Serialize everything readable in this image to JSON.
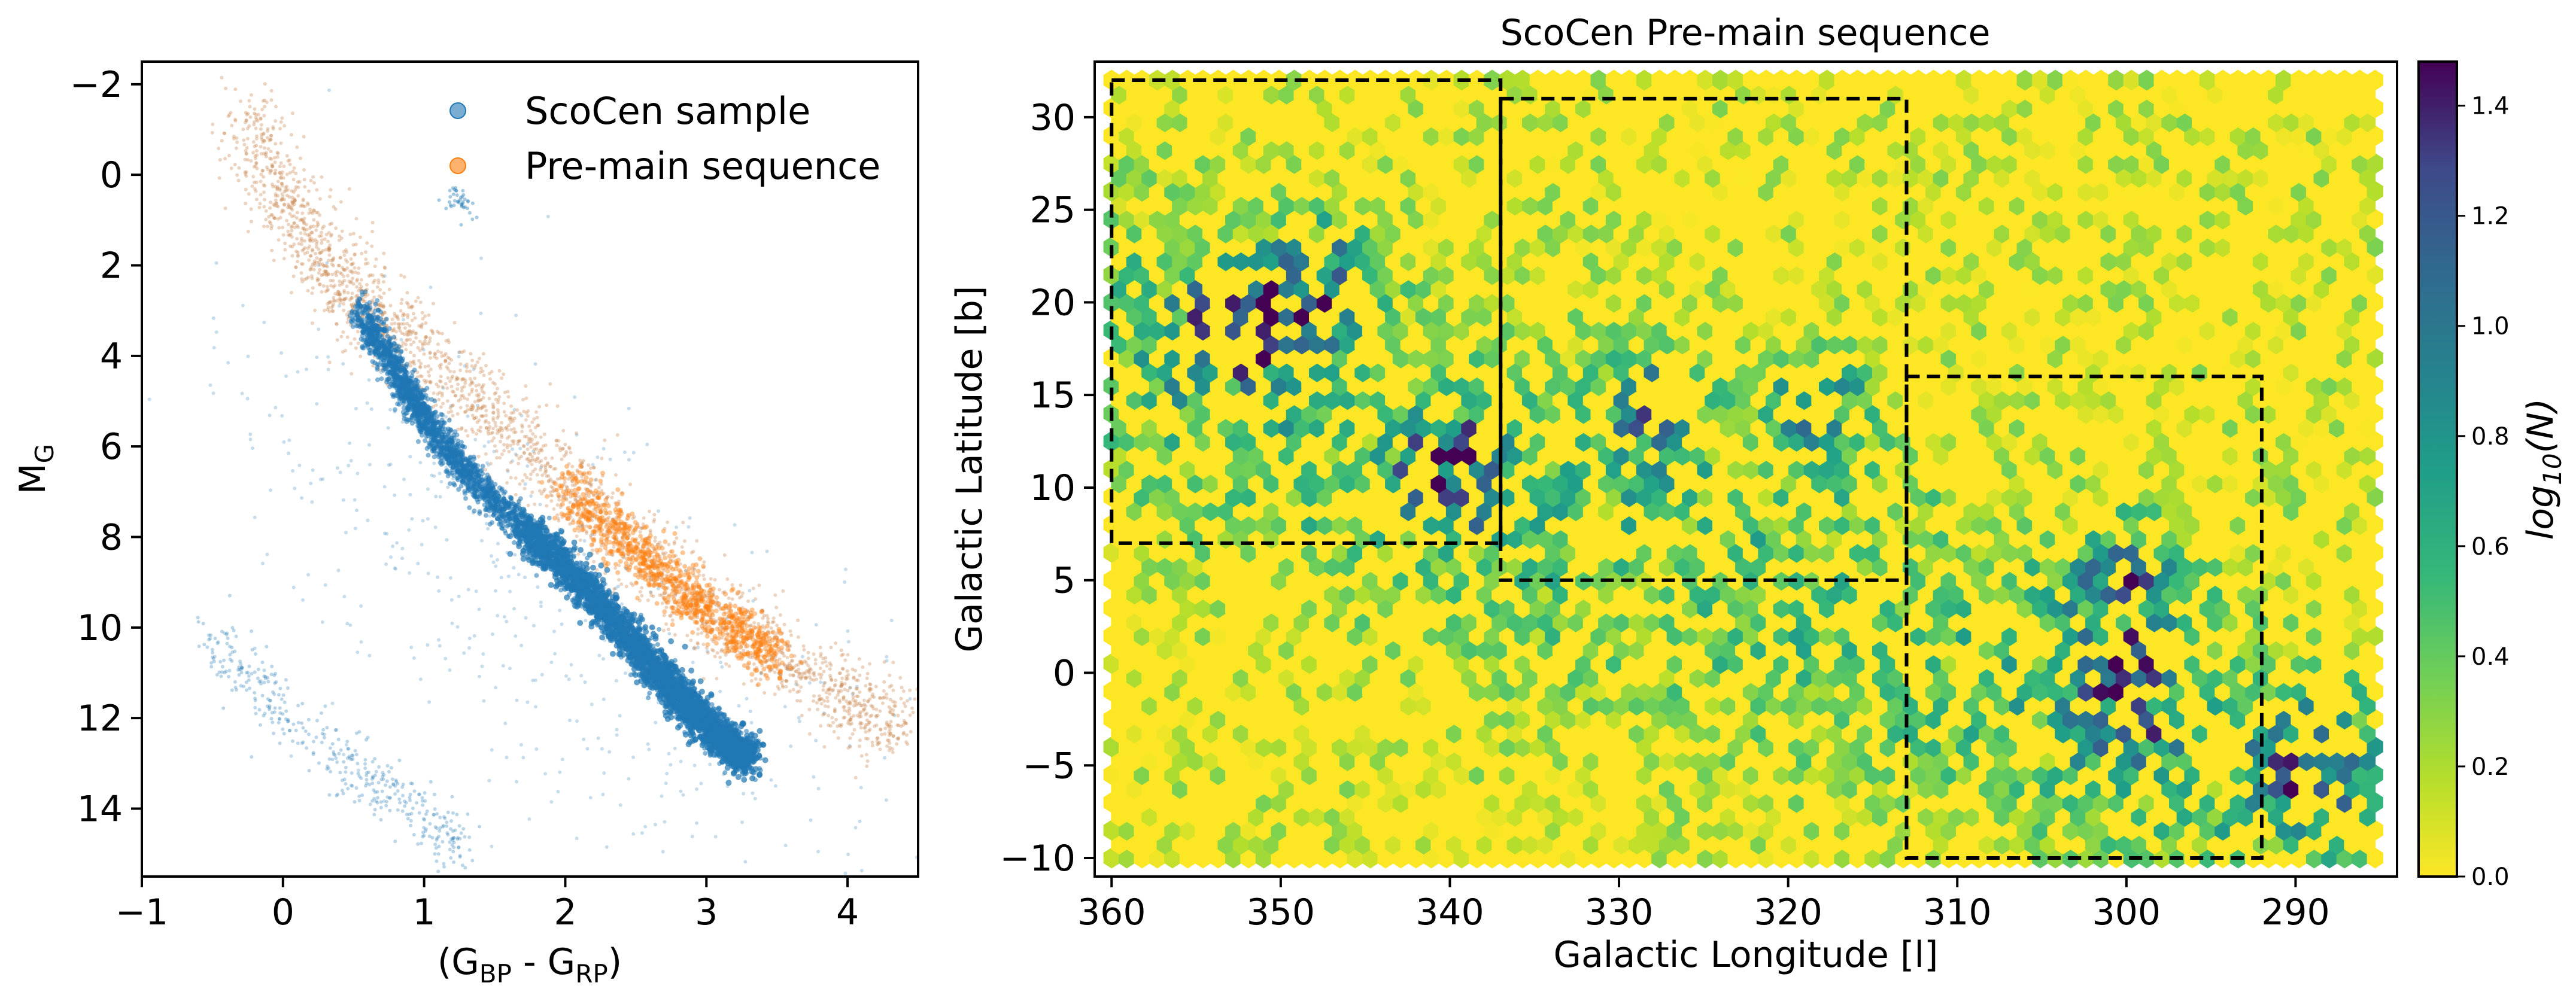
{
  "chart_data": [
    {
      "type": "scatter",
      "title": "",
      "xlabel": {
        "main": "(G",
        "sub1": "BP",
        "mid": " - G",
        "sub2": "RP",
        "end": ")"
      },
      "ylabel": {
        "main": "M",
        "sub": "G"
      },
      "xlim": [
        -1,
        4.5
      ],
      "ylim": [
        15.5,
        -2.5
      ],
      "y_inverted": true,
      "xticks": [
        -1,
        0,
        1,
        2,
        3,
        4
      ],
      "yticks": [
        -2,
        0,
        2,
        4,
        6,
        8,
        10,
        12,
        14
      ],
      "grid": false,
      "legend": {
        "placement": "top-right",
        "entries": [
          {
            "label": "ScoCen sample",
            "color": "#1f77b4"
          },
          {
            "label": "Pre-main sequence",
            "color": "#ff7f0e"
          }
        ]
      },
      "series": [
        {
          "name": "ScoCen sample",
          "color": "#1f77b4",
          "main_sequence_ridge": [
            [
              0.55,
              3.0
            ],
            [
              0.8,
              4.3
            ],
            [
              1.0,
              5.4
            ],
            [
              1.3,
              6.6
            ],
            [
              1.7,
              7.8
            ],
            [
              2.1,
              9.0
            ],
            [
              2.5,
              10.4
            ],
            [
              2.8,
              11.5
            ],
            [
              3.1,
              12.4
            ],
            [
              3.3,
              12.9
            ]
          ],
          "white_dwarf_sequence": [
            [
              -0.5,
              10.3
            ],
            [
              -0.2,
              11.3
            ],
            [
              0.2,
              12.4
            ],
            [
              0.6,
              13.4
            ],
            [
              1.0,
              14.2
            ],
            [
              1.3,
              14.8
            ]
          ],
          "giant_clump": [
            [
              1.2,
              0.3
            ],
            [
              1.25,
              0.6
            ],
            [
              1.3,
              0.8
            ]
          ]
        },
        {
          "name": "Pre-main sequence",
          "color": "#ff7f0e",
          "ridge": [
            [
              -0.3,
              -1.5
            ],
            [
              0.0,
              0.5
            ],
            [
              0.3,
              2.0
            ],
            [
              0.6,
              3.0
            ],
            [
              1.0,
              4.0
            ],
            [
              1.5,
              5.4
            ],
            [
              2.0,
              6.9
            ],
            [
              2.5,
              8.3
            ],
            [
              3.0,
              9.6
            ],
            [
              3.5,
              10.7
            ],
            [
              4.0,
              11.6
            ],
            [
              4.4,
              12.2
            ]
          ]
        }
      ]
    },
    {
      "type": "heatmap",
      "title": "ScoCen Pre-main sequence",
      "xlabel": "Galactic Longitude [l]",
      "ylabel": "Galactic Latitude [b]",
      "xlim": [
        361,
        284
      ],
      "ylim": [
        -11,
        33
      ],
      "x_inverted": true,
      "xticks": [
        360,
        350,
        340,
        330,
        320,
        310,
        300,
        290
      ],
      "yticks": [
        -10,
        -5,
        0,
        5,
        10,
        15,
        20,
        25,
        30
      ],
      "grid": false,
      "colormap": "viridis_r",
      "colorbar": {
        "label": {
          "main": "log",
          "sub": "10",
          "end": "(N)"
        },
        "range": [
          0.0,
          1.48
        ],
        "ticks": [
          0.0,
          0.2,
          0.4,
          0.6,
          0.8,
          1.0,
          1.2,
          1.4
        ],
        "tick_labels": [
          "0.0",
          "0.2",
          "0.4",
          "0.6",
          "0.8",
          "1.0",
          "1.2",
          "1.4"
        ]
      },
      "density_clumps": [
        {
          "l": 352.5,
          "b": 18.5,
          "peak": 1.4
        },
        {
          "l": 348,
          "b": 21,
          "peak": 0.95
        },
        {
          "l": 340,
          "b": 11,
          "peak": 1.0
        },
        {
          "l": 328,
          "b": 14,
          "peak": 0.8
        },
        {
          "l": 318,
          "b": 14,
          "peak": 0.7
        },
        {
          "l": 300,
          "b": 5,
          "peak": 0.85
        },
        {
          "l": 300,
          "b": -1.5,
          "peak": 1.05
        },
        {
          "l": 289,
          "b": -5,
          "peak": 1.0
        }
      ],
      "regions": [
        {
          "l_min": 337,
          "l_max": 360,
          "b_min": 7,
          "b_max": 32
        },
        {
          "l_min": 313,
          "l_max": 337,
          "b_min": 5,
          "b_max": 31
        },
        {
          "l_min": 292,
          "l_max": 313,
          "b_min": -10,
          "b_max": 16
        }
      ]
    }
  ]
}
